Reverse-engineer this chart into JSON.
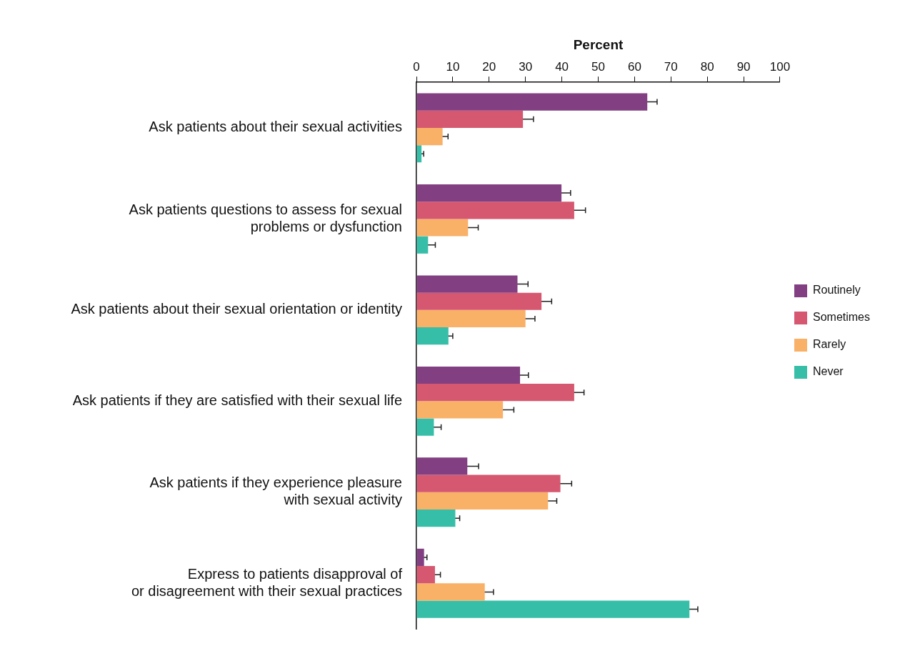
{
  "chart_data": {
    "type": "bar",
    "orientation": "horizontal",
    "xlabel": "Percent",
    "categories": [
      "Ask patients about their sexual activities",
      "Ask patients questions to assess for sexual\nproblems or dysfunction",
      "Ask patients about their sexual orientation or identity",
      "Ask patients if they are satisfied with their sexual life",
      "Ask patients if they experience pleasure\nwith sexual activity",
      "Express to patients disapproval of\nor disagreement with their sexual practices"
    ],
    "series": [
      {
        "name": "Routinely",
        "color": "#823f82",
        "values": [
          63.5,
          39.9,
          27.8,
          28.5,
          14.0,
          2.1
        ],
        "errors": [
          2.7,
          2.5,
          2.9,
          2.3,
          3.1,
          0.8
        ]
      },
      {
        "name": "Sometimes",
        "color": "#d65770",
        "values": [
          29.3,
          43.4,
          34.4,
          43.4,
          39.6,
          5.1
        ],
        "errors": [
          2.9,
          3.1,
          2.8,
          2.7,
          3.1,
          1.5
        ]
      },
      {
        "name": "Rarely",
        "color": "#f9b067",
        "values": [
          7.2,
          14.2,
          30.0,
          23.8,
          36.2,
          18.8
        ],
        "errors": [
          1.5,
          2.8,
          2.6,
          3.0,
          2.4,
          2.4
        ]
      },
      {
        "name": "Never",
        "color": "#37bea8",
        "values": [
          1.4,
          3.2,
          8.8,
          4.8,
          10.7,
          75.1
        ],
        "errors": [
          0.6,
          2.0,
          1.2,
          2.0,
          1.2,
          2.3
        ]
      }
    ],
    "xlim": [
      0,
      100
    ],
    "xticks": [
      0,
      10,
      20,
      30,
      40,
      50,
      60,
      70,
      80,
      90,
      100
    ],
    "grid": false,
    "legend": "right"
  }
}
